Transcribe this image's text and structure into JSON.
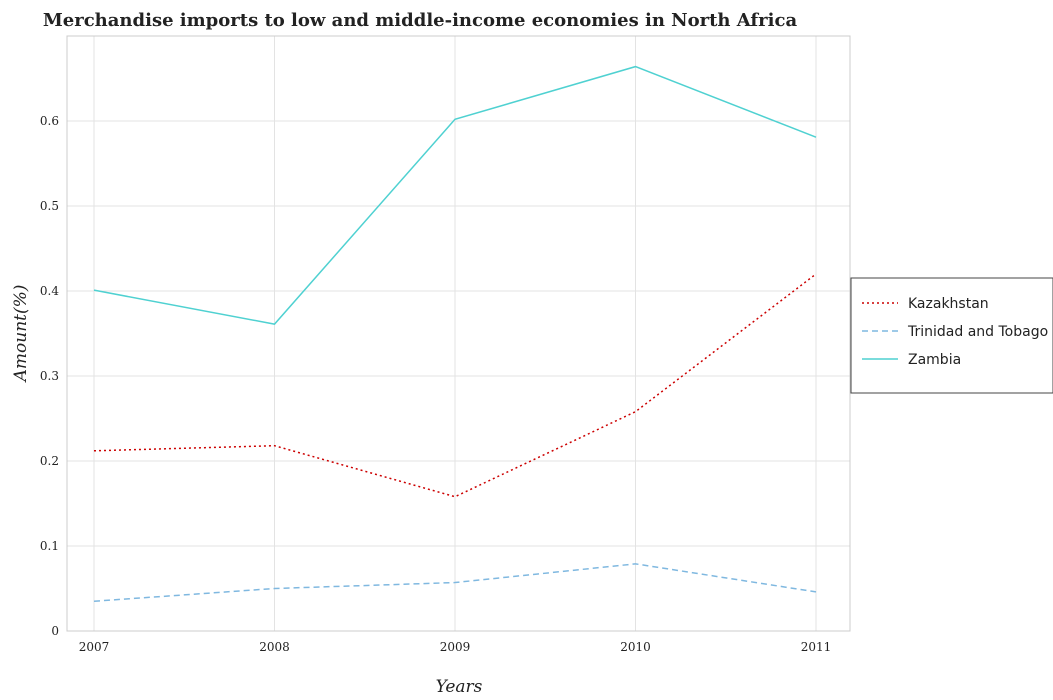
{
  "chart_data": {
    "type": "line",
    "title": "Merchandise imports to low and middle-income economies in North Africa",
    "xlabel": "Years",
    "ylabel": "Amount(%)",
    "categories": [
      "2007",
      "2008",
      "2009",
      "2010",
      "2011"
    ],
    "ylim": [
      0,
      0.7
    ],
    "yticks": [
      "0",
      "0.1",
      "0.2",
      "0.3",
      "0.4",
      "0.5",
      "0.6"
    ],
    "grid": true,
    "legend_position": "right",
    "series": [
      {
        "name": "Kazakhstan",
        "color": "#cc0000",
        "dash": "dotted",
        "values": [
          0.212,
          0.218,
          0.158,
          0.258,
          0.42
        ]
      },
      {
        "name": "Trinidad and Tobago",
        "color": "#7fb8e0",
        "dash": "dashed",
        "values": [
          0.035,
          0.05,
          0.057,
          0.079,
          0.046
        ]
      },
      {
        "name": "Zambia",
        "color": "#4fd1d1",
        "dash": "solid",
        "values": [
          0.401,
          0.361,
          0.602,
          0.664,
          0.581
        ]
      }
    ]
  }
}
